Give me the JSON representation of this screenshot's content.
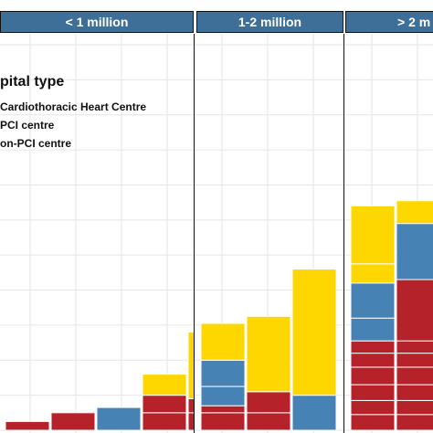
{
  "colors": {
    "strip_bg": "#3d6f99",
    "strip_text": "#ffffff",
    "grid": "#e6e6e6",
    "bar_edge": "#ffffff"
  },
  "legend": {
    "title": "pital type",
    "items": [
      {
        "label": "Cardiothoracic Heart Centre",
        "color": "#b5222a"
      },
      {
        "label": "PCI centre",
        "color": "#4682b4"
      },
      {
        "label": "on-PCI centre",
        "color": "#ffd700"
      }
    ]
  },
  "chart_data": {
    "type": "bar",
    "stacked": true,
    "facet_labels": [
      "< 1 million",
      "1-2 million",
      "> 2 m"
    ],
    "series_names": [
      "Cardiothoracic Heart Centre",
      "PCI centre",
      "on-PCI centre"
    ],
    "series_colors": [
      "#b5222a",
      "#4682b4",
      "#ffd700"
    ],
    "ylim": [
      0,
      22
    ],
    "grid": true,
    "panels": [
      {
        "bars": [
          {
            "segments": [
              {
                "series": 0,
                "value": 0.5
              }
            ]
          },
          {
            "segments": [
              {
                "series": 0,
                "value": 1.0
              }
            ]
          },
          {
            "segments": [
              {
                "series": 0,
                "value": 0.0
              },
              {
                "series": 1,
                "value": 1.3
              }
            ]
          },
          {
            "segments": [
              {
                "series": 0,
                "value": 1.0
              },
              {
                "series": 0,
                "value": 1.0
              },
              {
                "series": 2,
                "value": 1.2
              }
            ]
          },
          {
            "segments": [
              {
                "series": 0,
                "value": 1.0
              },
              {
                "series": 0,
                "value": 0.8
              },
              {
                "series": 2,
                "value": 3.8
              }
            ]
          }
        ]
      },
      {
        "bars": [
          {
            "segments": [
              {
                "series": 0,
                "value": 1.0
              },
              {
                "series": 0,
                "value": 0.4
              },
              {
                "series": 1,
                "value": 1.1
              },
              {
                "series": 1,
                "value": 1.5
              },
              {
                "series": 2,
                "value": 2.1
              }
            ]
          },
          {
            "segments": [
              {
                "series": 0,
                "value": 1.0
              },
              {
                "series": 0,
                "value": 1.2
              },
              {
                "series": 2,
                "value": 4.3
              }
            ]
          },
          {
            "segments": [
              {
                "series": 1,
                "value": 2.0
              },
              {
                "series": 2,
                "value": 7.2
              }
            ]
          }
        ]
      },
      {
        "bars": [
          {
            "segments": [
              {
                "series": 0,
                "value": 0.9
              },
              {
                "series": 0,
                "value": 0.8
              },
              {
                "series": 0,
                "value": 0.9
              },
              {
                "series": 0,
                "value": 1.0
              },
              {
                "series": 0,
                "value": 0.8
              },
              {
                "series": 0,
                "value": 0.7
              },
              {
                "series": 1,
                "value": 1.3
              },
              {
                "series": 1,
                "value": 2.0
              },
              {
                "series": 2,
                "value": 1.1
              },
              {
                "series": 2,
                "value": 3.3
              }
            ]
          },
          {
            "segments": [
              {
                "series": 0,
                "value": 0.9
              },
              {
                "series": 0,
                "value": 0.8
              },
              {
                "series": 0,
                "value": 0.9
              },
              {
                "series": 0,
                "value": 1.0
              },
              {
                "series": 0,
                "value": 0.8
              },
              {
                "series": 0,
                "value": 0.7
              },
              {
                "series": 0,
                "value": 3.5
              },
              {
                "series": 1,
                "value": 3.2
              },
              {
                "series": 2,
                "value": 1.3
              }
            ]
          }
        ]
      }
    ]
  }
}
